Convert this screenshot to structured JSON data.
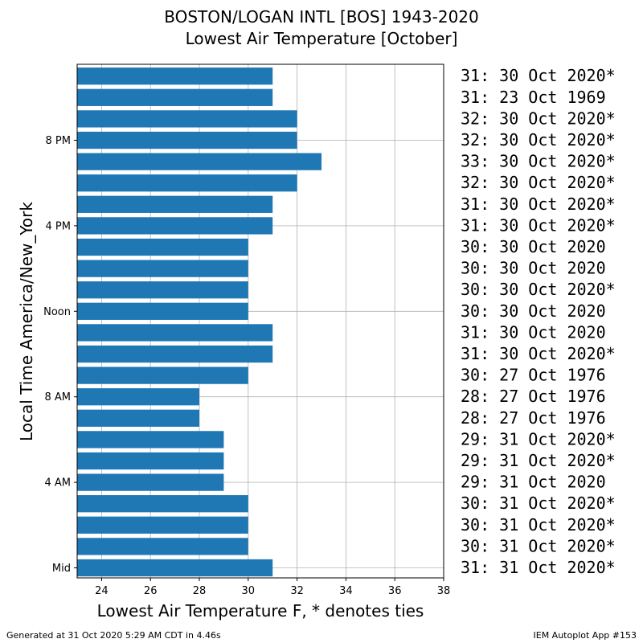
{
  "chart_data": {
    "type": "bar",
    "orientation": "horizontal",
    "title": "BOSTON/LOGAN INTL [BOS] 1943-2020",
    "subtitle": "Lowest Air Temperature [October]",
    "xlabel": "Lowest Air Temperature F, * denotes ties",
    "ylabel": "Local Time America/New_York",
    "xlim": [
      23,
      38
    ],
    "xticks": [
      "24",
      "26",
      "28",
      "30",
      "32",
      "34",
      "36",
      "38"
    ],
    "ytick_labels": [
      {
        "hour": 0,
        "label": "Mid"
      },
      {
        "hour": 4,
        "label": "4 AM"
      },
      {
        "hour": 8,
        "label": "8 AM"
      },
      {
        "hour": 12,
        "label": "Noon"
      },
      {
        "hour": 16,
        "label": "4 PM"
      },
      {
        "hour": 20,
        "label": "8 PM"
      }
    ],
    "grid": true,
    "bar_color": "#1f77b4",
    "hours": [
      0,
      1,
      2,
      3,
      4,
      5,
      6,
      7,
      8,
      9,
      10,
      11,
      12,
      13,
      14,
      15,
      16,
      17,
      18,
      19,
      20,
      21,
      22,
      23
    ],
    "values": [
      31,
      30,
      30,
      30,
      29,
      29,
      29,
      28,
      28,
      30,
      31,
      31,
      30,
      30,
      30,
      30,
      31,
      31,
      32,
      33,
      32,
      32,
      31,
      31
    ],
    "annotations": [
      "31: 31 Oct 2020*",
      "30: 31 Oct 2020*",
      "30: 31 Oct 2020*",
      "30: 31 Oct 2020*",
      "29: 31 Oct 2020",
      "29: 31 Oct 2020*",
      "29: 31 Oct 2020*",
      "28: 27 Oct 1976",
      "28: 27 Oct 1976",
      "30: 27 Oct 1976",
      "31: 30 Oct 2020*",
      "31: 30 Oct 2020",
      "30: 30 Oct 2020",
      "30: 30 Oct 2020*",
      "30: 30 Oct 2020",
      "30: 30 Oct 2020",
      "31: 30 Oct 2020*",
      "31: 30 Oct 2020*",
      "32: 30 Oct 2020*",
      "33: 30 Oct 2020*",
      "32: 30 Oct 2020*",
      "32: 30 Oct 2020*",
      "31: 23 Oct 1969",
      "31: 30 Oct 2020*"
    ]
  },
  "footer": {
    "generated": "Generated at 31 Oct 2020 5:29 AM CDT in 4.46s",
    "app": "IEM Autoplot App #153"
  }
}
